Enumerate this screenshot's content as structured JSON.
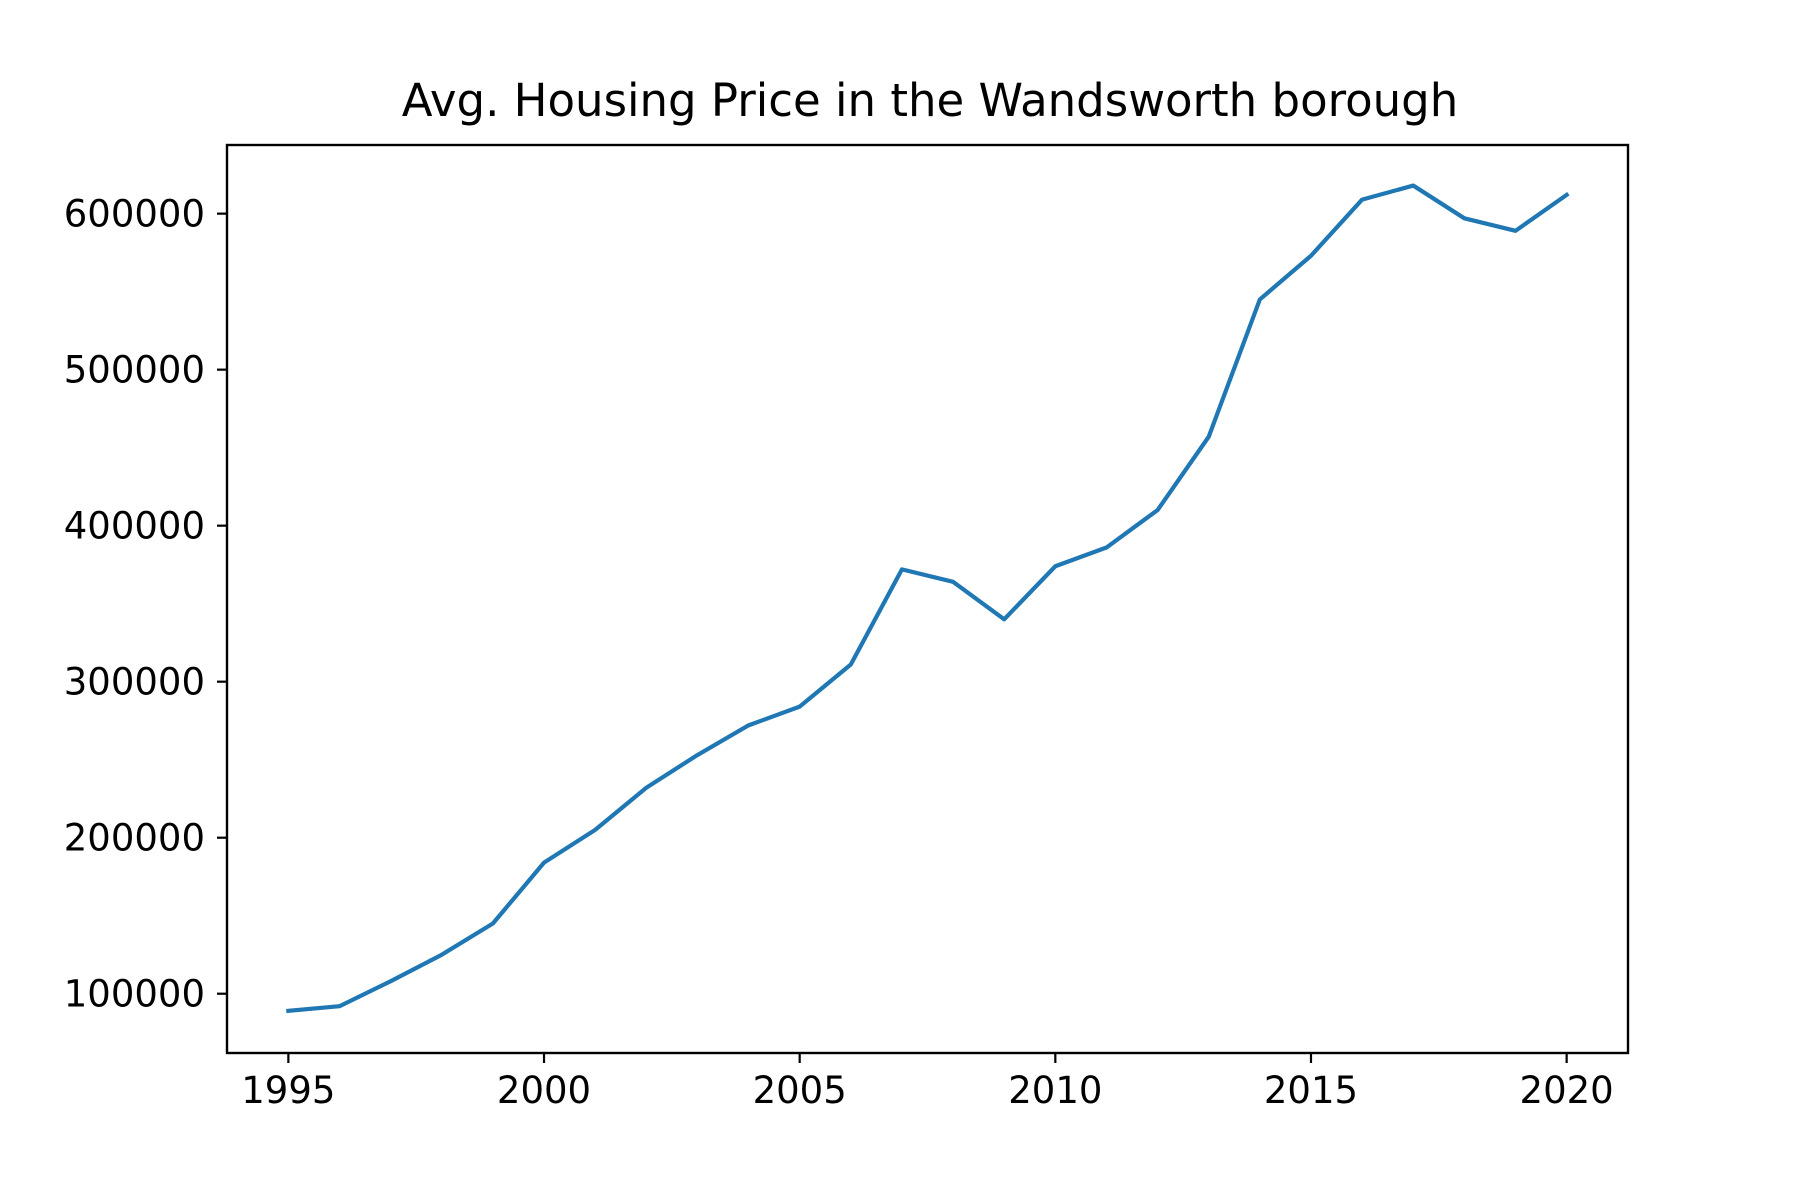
{
  "chart_data": {
    "type": "line",
    "title": "Avg. Housing Price in the Wandsworth borough",
    "xlabel": "",
    "ylabel": "",
    "xlim": [
      1993.8,
      2021.2
    ],
    "ylim": [
      62000,
      644000
    ],
    "grid": false,
    "x_ticks": [
      1995,
      2000,
      2005,
      2010,
      2015,
      2020
    ],
    "x_tick_labels": [
      "1995",
      "2000",
      "2005",
      "2010",
      "2015",
      "2020"
    ],
    "y_ticks": [
      100000,
      200000,
      300000,
      400000,
      500000,
      600000
    ],
    "y_tick_labels": [
      "100000",
      "200000",
      "300000",
      "400000",
      "500000",
      "600000"
    ],
    "series": [
      {
        "name": "Wandsworth",
        "color": "#1f77b4",
        "x": [
          1995,
          1996,
          1997,
          1998,
          1999,
          2000,
          2001,
          2002,
          2003,
          2004,
          2005,
          2006,
          2007,
          2008,
          2009,
          2010,
          2011,
          2012,
          2013,
          2014,
          2015,
          2016,
          2017,
          2018,
          2019,
          2020
        ],
        "values": [
          89000,
          92000,
          108000,
          125000,
          145000,
          184000,
          205000,
          232000,
          253000,
          272000,
          284000,
          311000,
          372000,
          364000,
          340000,
          374000,
          386000,
          410000,
          457000,
          545000,
          573000,
          609000,
          618000,
          597000,
          589000,
          612000
        ]
      }
    ]
  }
}
